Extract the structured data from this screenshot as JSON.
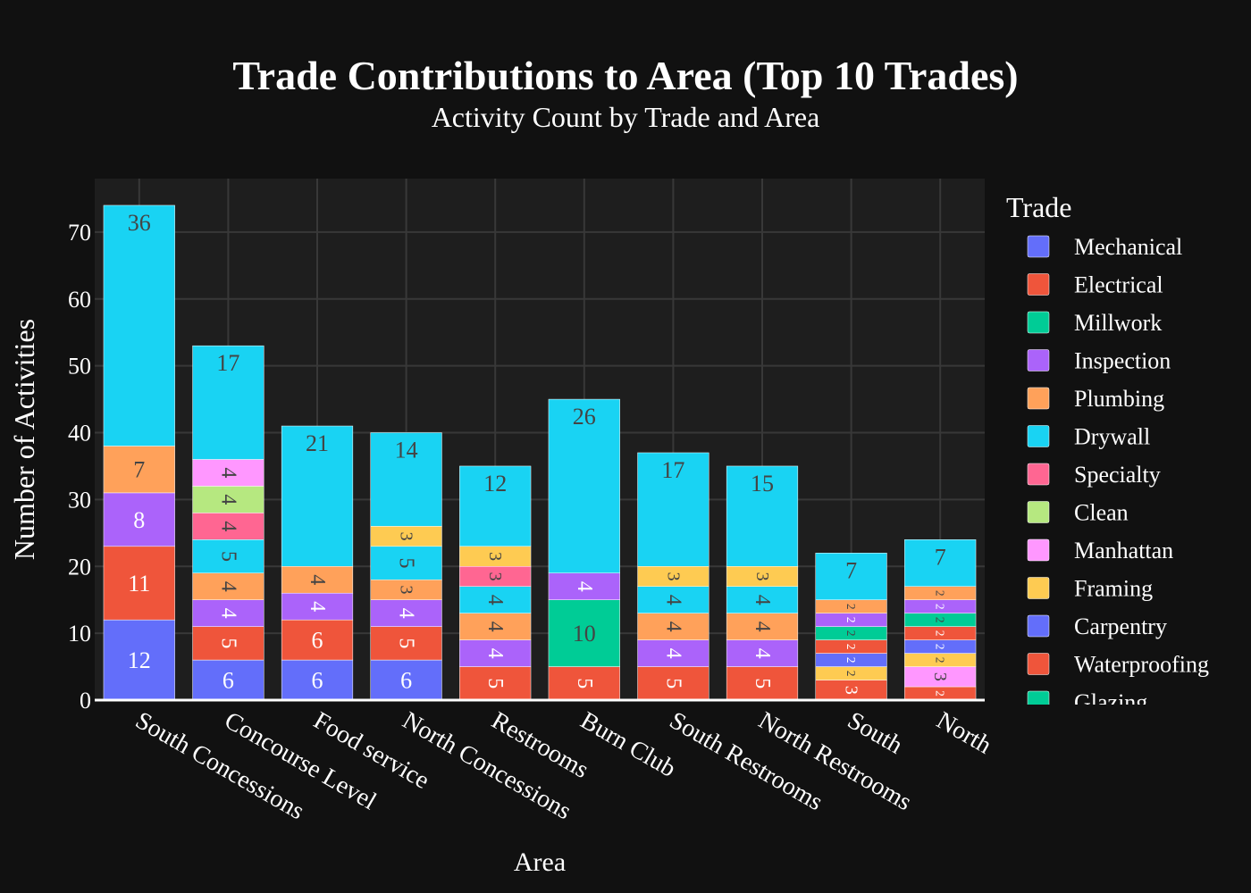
{
  "chart_data": {
    "type": "bar",
    "stacked": true,
    "title": "Trade Contributions to Area (Top 10 Trades)",
    "subtitle": "Activity Count by Trade and Area",
    "xlabel": "Area",
    "ylabel": "Number of Activities",
    "ylim": [
      0,
      78
    ],
    "yticks": [
      0,
      10,
      20,
      30,
      40,
      50,
      60,
      70
    ],
    "grid": true,
    "legend_title": "Trade",
    "legend_placement": "right",
    "categories": [
      "South Concessions",
      "Concourse Level",
      "Food service",
      "North Concessions",
      "Restrooms",
      "Burn Club",
      "South Restrooms",
      "North Restrooms",
      "South",
      "North"
    ],
    "series": [
      {
        "name": "Mechanical",
        "color": "#636efa",
        "values": [
          12,
          6,
          6,
          6,
          0,
          0,
          0,
          0,
          0,
          0
        ]
      },
      {
        "name": "Electrical",
        "color": "#ef553b",
        "values": [
          11,
          5,
          6,
          5,
          5,
          5,
          5,
          5,
          3,
          2
        ]
      },
      {
        "name": "Millwork",
        "color": "#00cc96",
        "values": [
          0,
          0,
          0,
          0,
          0,
          10,
          0,
          0,
          0,
          0
        ]
      },
      {
        "name": "Manhattan",
        "color": "#ff97ff",
        "values": [
          0,
          0,
          0,
          0,
          0,
          0,
          0,
          0,
          0,
          3
        ]
      },
      {
        "name": "Framing",
        "color": "#fecb52",
        "values": [
          0,
          0,
          0,
          0,
          0,
          0,
          0,
          0,
          2,
          2
        ]
      },
      {
        "name": "Carpentry",
        "color": "#636efa",
        "values": [
          0,
          0,
          0,
          0,
          0,
          0,
          0,
          0,
          2,
          2
        ]
      },
      {
        "name": "Waterproofing",
        "color": "#ef553b",
        "values": [
          0,
          0,
          0,
          0,
          0,
          0,
          0,
          0,
          2,
          2
        ]
      },
      {
        "name": "Glazing",
        "color": "#00cc96",
        "values": [
          0,
          0,
          0,
          0,
          0,
          0,
          0,
          0,
          2,
          2
        ]
      },
      {
        "name": "Inspection",
        "color": "#ab63fa",
        "values": [
          8,
          4,
          4,
          4,
          4,
          4,
          4,
          4,
          2,
          2
        ]
      },
      {
        "name": "Plumbing",
        "color": "#ffa15a",
        "values": [
          7,
          4,
          4,
          3,
          4,
          0,
          4,
          4,
          2,
          2
        ]
      },
      {
        "name": "Drywall",
        "color": "#19d3f3",
        "values": [
          0,
          5,
          0,
          5,
          4,
          0,
          4,
          4,
          0,
          0
        ]
      },
      {
        "name": "Specialty",
        "color": "#ff6692",
        "values": [
          0,
          4,
          0,
          0,
          3,
          0,
          0,
          0,
          0,
          0
        ]
      },
      {
        "name": "Clean",
        "color": "#b6e880",
        "values": [
          0,
          4,
          0,
          0,
          0,
          0,
          0,
          0,
          0,
          0
        ]
      },
      {
        "name": "Manhattan",
        "color": "#ff97ff",
        "values": [
          0,
          4,
          0,
          0,
          0,
          0,
          0,
          0,
          0,
          0
        ]
      },
      {
        "name": "Framing",
        "color": "#fecb52",
        "values": [
          0,
          0,
          0,
          3,
          3,
          0,
          3,
          3,
          0,
          0
        ]
      },
      {
        "name": "Drywall",
        "color": "#19d3f3",
        "values": [
          36,
          17,
          21,
          14,
          12,
          26,
          17,
          15,
          7,
          7
        ]
      }
    ],
    "legend": [
      {
        "name": "Mechanical",
        "color": "#636efa"
      },
      {
        "name": "Electrical",
        "color": "#ef553b"
      },
      {
        "name": "Millwork",
        "color": "#00cc96"
      },
      {
        "name": "Inspection",
        "color": "#ab63fa"
      },
      {
        "name": "Plumbing",
        "color": "#ffa15a"
      },
      {
        "name": "Drywall",
        "color": "#19d3f3"
      },
      {
        "name": "Specialty",
        "color": "#ff6692"
      },
      {
        "name": "Clean",
        "color": "#b6e880"
      },
      {
        "name": "Manhattan",
        "color": "#ff97ff"
      },
      {
        "name": "Framing",
        "color": "#fecb52"
      },
      {
        "name": "Carpentry",
        "color": "#636efa"
      },
      {
        "name": "Waterproofing",
        "color": "#ef553b"
      },
      {
        "name": "Glazing",
        "color": "#00cc96"
      }
    ]
  }
}
